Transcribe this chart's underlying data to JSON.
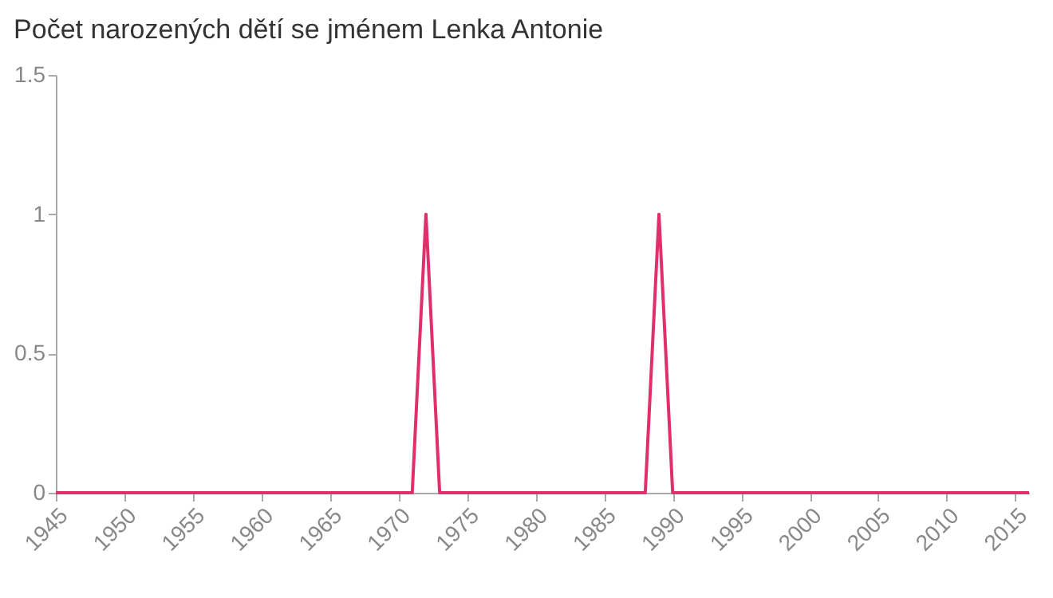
{
  "chart_data": {
    "type": "line",
    "title": "Počet narozených dětí se jménem Lenka Antonie",
    "x": [
      1945,
      1971,
      1972,
      1973,
      1988,
      1989,
      1990,
      2016
    ],
    "series": [
      {
        "color": "#e0306a",
        "values": [
          0,
          0,
          1,
          0,
          0,
          1,
          0,
          0
        ]
      }
    ],
    "xlim": [
      1945,
      2016
    ],
    "xticks": [
      1945,
      1950,
      1955,
      1960,
      1965,
      1970,
      1975,
      1980,
      1985,
      1990,
      1995,
      2000,
      2005,
      2010,
      2015
    ],
    "ylim": [
      0,
      1.5
    ],
    "yticks": [
      0,
      0.5,
      1,
      1.5
    ],
    "grid": false,
    "legend": false,
    "marker": "none",
    "line_style": "solid"
  }
}
